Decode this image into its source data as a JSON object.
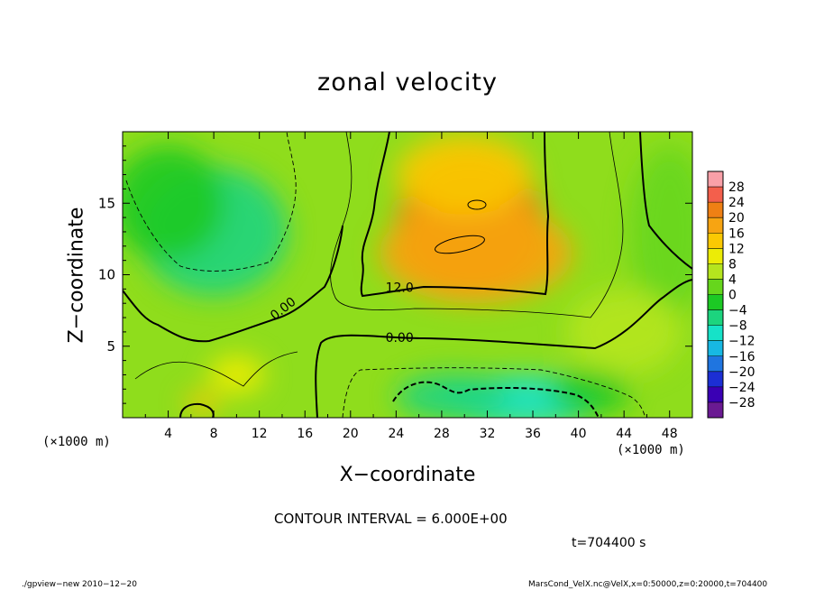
{
  "chart_data": {
    "type": "heatmap",
    "title": "zonal velocity",
    "xlabel": "X−coordinate",
    "ylabel": "Z−coordinate",
    "x_unit_left": "(×1000 m)",
    "x_unit_right": "(×1000 m)",
    "xlim": [
      0,
      50
    ],
    "ylim": [
      0,
      20
    ],
    "x_ticks": [
      4,
      8,
      12,
      16,
      20,
      24,
      28,
      32,
      36,
      40,
      44,
      48
    ],
    "y_ticks": [
      5,
      10,
      15
    ],
    "colorbar_levels": [
      28,
      24,
      20,
      16,
      12,
      8,
      4,
      0,
      -4,
      -8,
      -12,
      -16,
      -20,
      -24,
      -28
    ],
    "colorbar_colors": [
      "#f9a0a8",
      "#f35f4c",
      "#ef8014",
      "#f7a412",
      "#fbc903",
      "#ecec06",
      "#b5e51e",
      "#66d61c",
      "#1cc924",
      "#1cd47e",
      "#16e2c8",
      "#17b8e3",
      "#1f75e0",
      "#1c2fd4",
      "#3a00b4",
      "#6a1a92"
    ],
    "contour_labels": [
      {
        "text": "12.0",
        "x": 24.3,
        "z": 8.8
      },
      {
        "text": "0.00",
        "x": 14.3,
        "z": 7.4
      },
      {
        "text": "0.00",
        "x": 24.3,
        "z": 5.3
      }
    ],
    "contour_interval_text": "CONTOUR INTERVAL = 6.000E+00",
    "time_text": "t=704400 s",
    "footer_left": "./gpview−new  2010−12−20",
    "footer_right": "MarsCond_VelX.nc@VelX,x=0:50000,z=0:20000,t=704400",
    "blobs": [
      {
        "x": 30.5,
        "z": 13.5,
        "rx": 6.5,
        "rz": 5.0,
        "v": 19
      },
      {
        "x": 31.0,
        "z": 11.5,
        "rx": 8.5,
        "rz": 3.5,
        "v": 16
      },
      {
        "x": 30.0,
        "z": 17.0,
        "rx": 6.0,
        "rz": 2.8,
        "v": 12
      },
      {
        "x": 8.0,
        "z": 13.0,
        "rx": 6.5,
        "rz": 4.5,
        "v": -8
      },
      {
        "x": 4.0,
        "z": 15.0,
        "rx": 5.0,
        "rz": 4.0,
        "v": -5
      },
      {
        "x": 35.0,
        "z": 1.2,
        "rx": 7.0,
        "rz": 1.8,
        "v": -15
      },
      {
        "x": 29.0,
        "z": 1.5,
        "rx": 5.0,
        "rz": 1.6,
        "v": -10
      },
      {
        "x": 41.0,
        "z": 1.8,
        "rx": 3.5,
        "rz": 1.5,
        "v": -7
      },
      {
        "x": 10.0,
        "z": 3.0,
        "rx": 2.5,
        "rz": 1.4,
        "v": 6
      },
      {
        "x": 7.0,
        "z": 1.0,
        "rx": 1.5,
        "rz": 0.8,
        "v": 9
      },
      {
        "x": 48.0,
        "z": 13.0,
        "rx": 3.5,
        "rz": 6.0,
        "v": -2
      },
      {
        "x": 44.0,
        "z": 6.0,
        "rx": 5.0,
        "rz": 3.0,
        "v": 3
      }
    ]
  }
}
